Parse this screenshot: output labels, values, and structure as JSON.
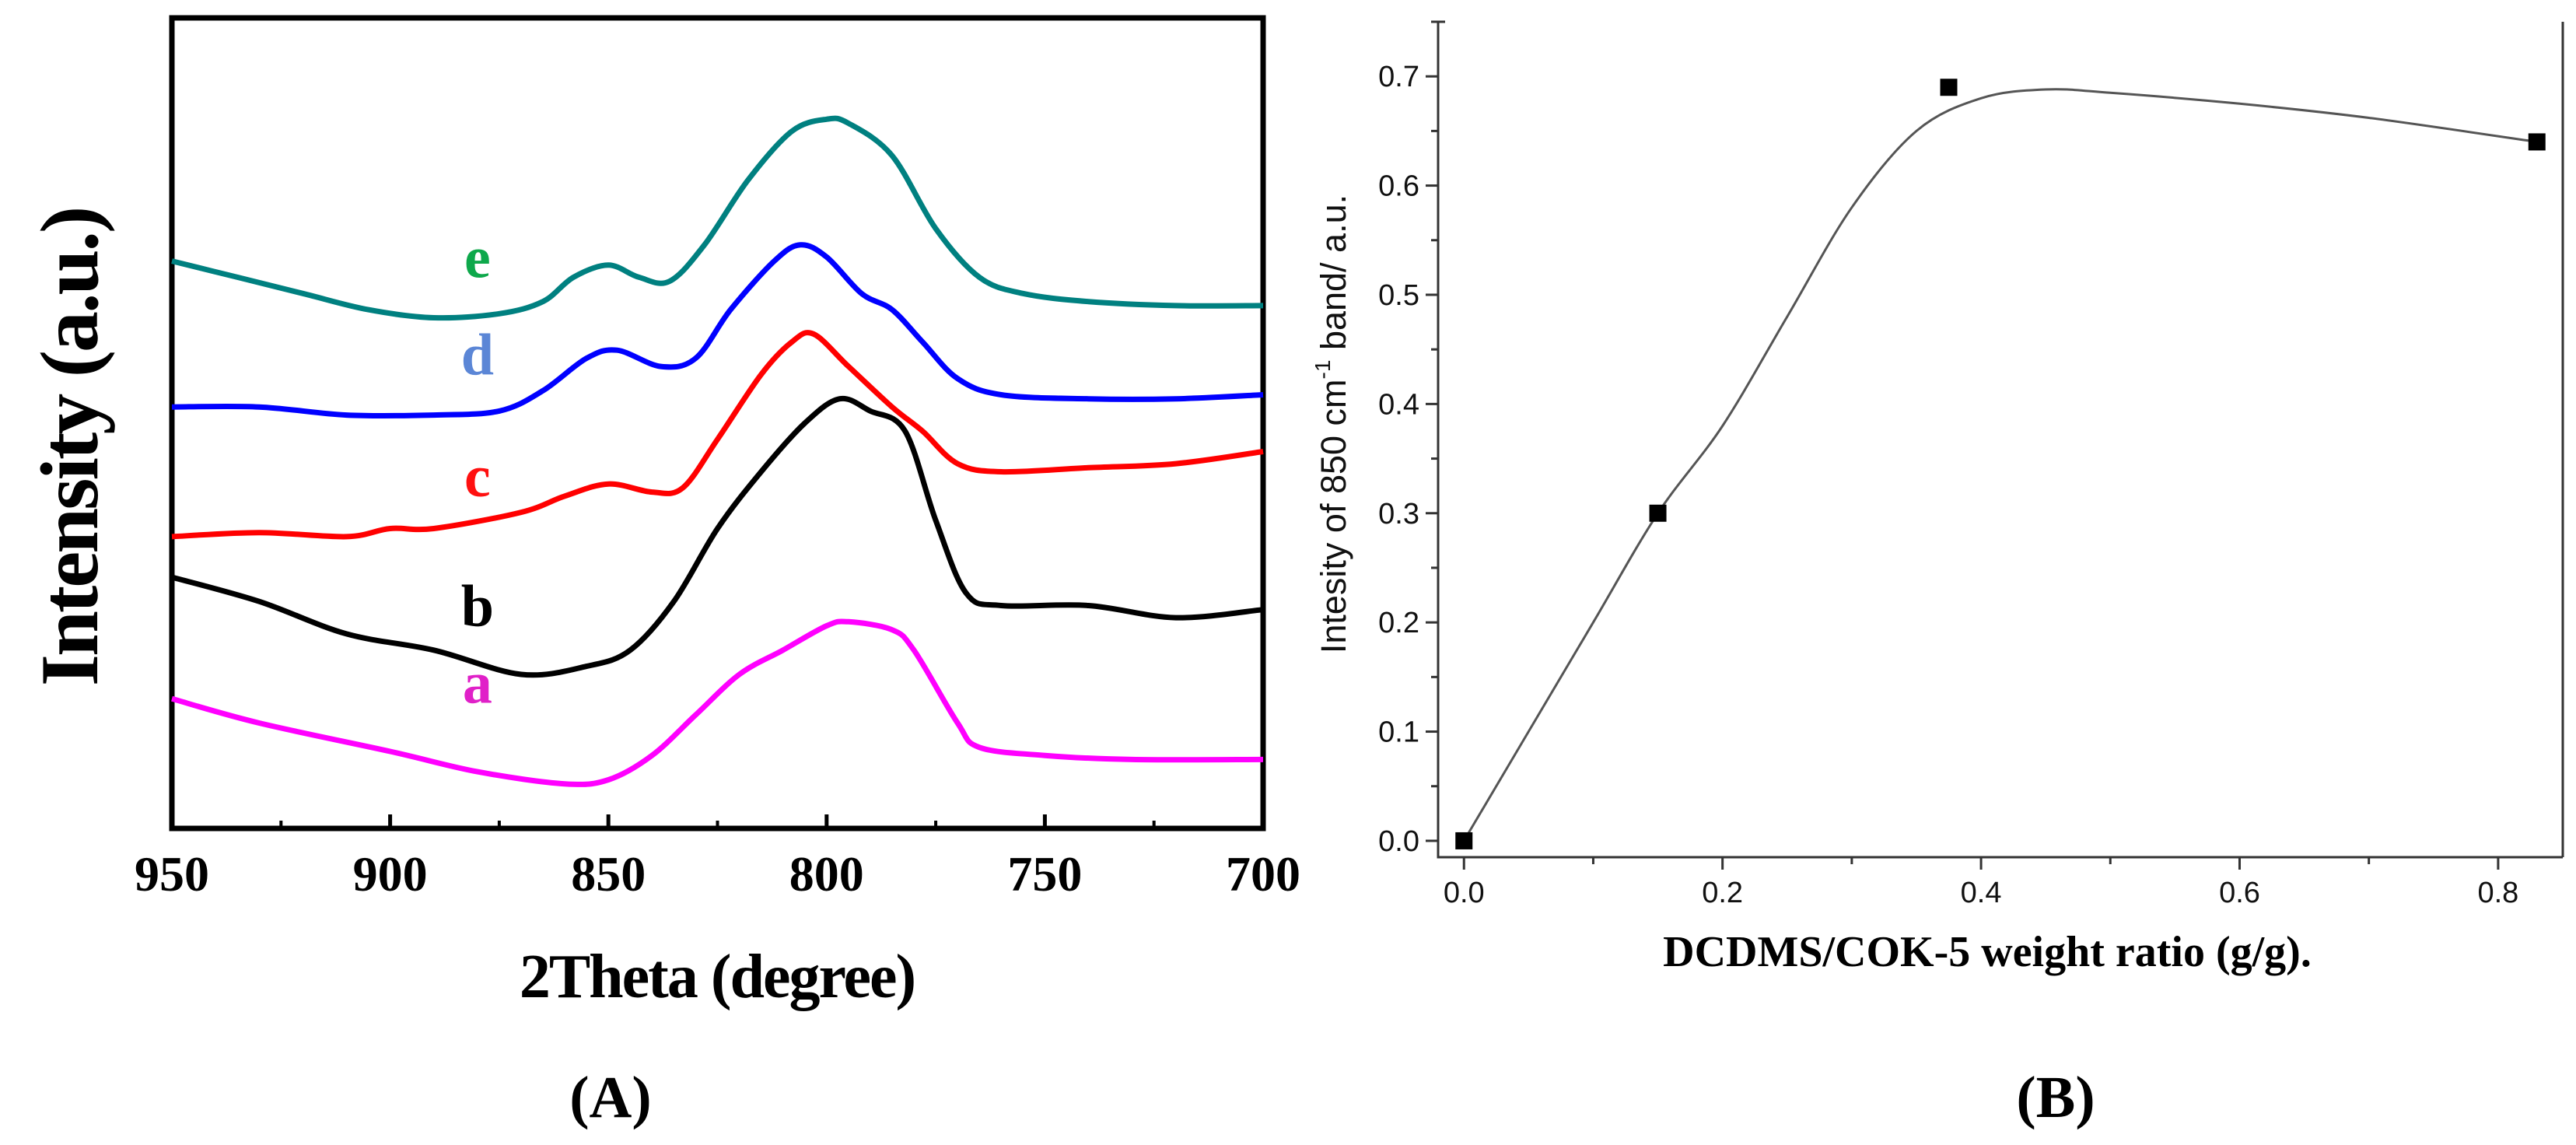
{
  "chart_data": [
    {
      "panel": "A",
      "panel_label": "(A)",
      "type": "line",
      "title": "",
      "xlabel": "2Theta (degree)",
      "ylabel": "Intensity (a.u.)",
      "xlim": [
        950,
        700
      ],
      "x_ticks": [
        950,
        900,
        850,
        800,
        750,
        700
      ],
      "x_tick_labels": [
        "950",
        "900",
        "850",
        "800",
        "750",
        "700"
      ],
      "y_ticks_shown": false,
      "grid": false,
      "ylim": [
        0,
        100
      ],
      "series": [
        {
          "name": "a",
          "label": "a",
          "color": "#ff00ff",
          "label_color": "#e020c8",
          "label_at": [
            880,
            15.5
          ],
          "points": [
            [
              950,
              16
            ],
            [
              930,
              13
            ],
            [
              900,
              9.5
            ],
            [
              880,
              7
            ],
            [
              860,
              5.5
            ],
            [
              850,
              6
            ],
            [
              840,
              9
            ],
            [
              830,
              14
            ],
            [
              820,
              19
            ],
            [
              810,
              22
            ],
            [
              800,
              25
            ],
            [
              795,
              25.5
            ],
            [
              785,
              24.5
            ],
            [
              780,
              22
            ],
            [
              770,
              13
            ],
            [
              765,
              10
            ],
            [
              750,
              9
            ],
            [
              730,
              8.5
            ],
            [
              700,
              8.5
            ]
          ]
        },
        {
          "name": "b",
          "label": "b",
          "color": "#000000",
          "label_color": "#000000",
          "label_at": [
            880,
            25
          ]
        },
        {
          "name": "c",
          "label": "c",
          "color": "#ff0000",
          "label_color": "#ff1010",
          "label_at": [
            880,
            41
          ]
        },
        {
          "name": "d",
          "label": "d",
          "color": "#0000ff",
          "label_color": "#5b86d6",
          "label_at": [
            880,
            56
          ]
        },
        {
          "name": "e",
          "label": "e",
          "color": "#008080",
          "label_color": "#0ea84b",
          "label_at": [
            880,
            68
          ]
        }
      ]
    },
    {
      "panel": "B",
      "panel_label": "(B)",
      "type": "scatter",
      "title": "",
      "xlabel": "DCDMS/COK-5 weight ratio (g/g).",
      "ylabel_prefix": "Intesity of 850 cm",
      "ylabel_sup": "-1",
      "ylabel_suffix": " band/ a.u.",
      "xlim": [
        -0.02,
        0.85
      ],
      "ylim": [
        -0.015,
        0.75
      ],
      "x_ticks": [
        0.0,
        0.2,
        0.4,
        0.6,
        0.8
      ],
      "x_tick_labels": [
        "0.0",
        "0.2",
        "0.4",
        "0.6",
        "0.8"
      ],
      "y_ticks": [
        0.0,
        0.1,
        0.2,
        0.3,
        0.4,
        0.5,
        0.6,
        0.7
      ],
      "y_tick_labels": [
        "0.0",
        "0.1",
        "0.2",
        "0.3",
        "0.4",
        "0.5",
        "0.6",
        "0.7"
      ],
      "grid": false,
      "points": {
        "x": [
          0.0,
          0.15,
          0.375,
          0.83
        ],
        "y": [
          0.0,
          0.3,
          0.69,
          0.64
        ]
      },
      "fit_curve": {
        "color": "#555555",
        "points": [
          [
            0,
            0
          ],
          [
            0.05,
            0.1
          ],
          [
            0.1,
            0.2
          ],
          [
            0.15,
            0.3
          ],
          [
            0.2,
            0.38
          ],
          [
            0.25,
            0.48
          ],
          [
            0.3,
            0.58
          ],
          [
            0.35,
            0.65
          ],
          [
            0.4,
            0.68
          ],
          [
            0.45,
            0.688
          ],
          [
            0.5,
            0.685
          ],
          [
            0.6,
            0.675
          ],
          [
            0.7,
            0.662
          ],
          [
            0.83,
            0.64
          ]
        ]
      }
    }
  ]
}
